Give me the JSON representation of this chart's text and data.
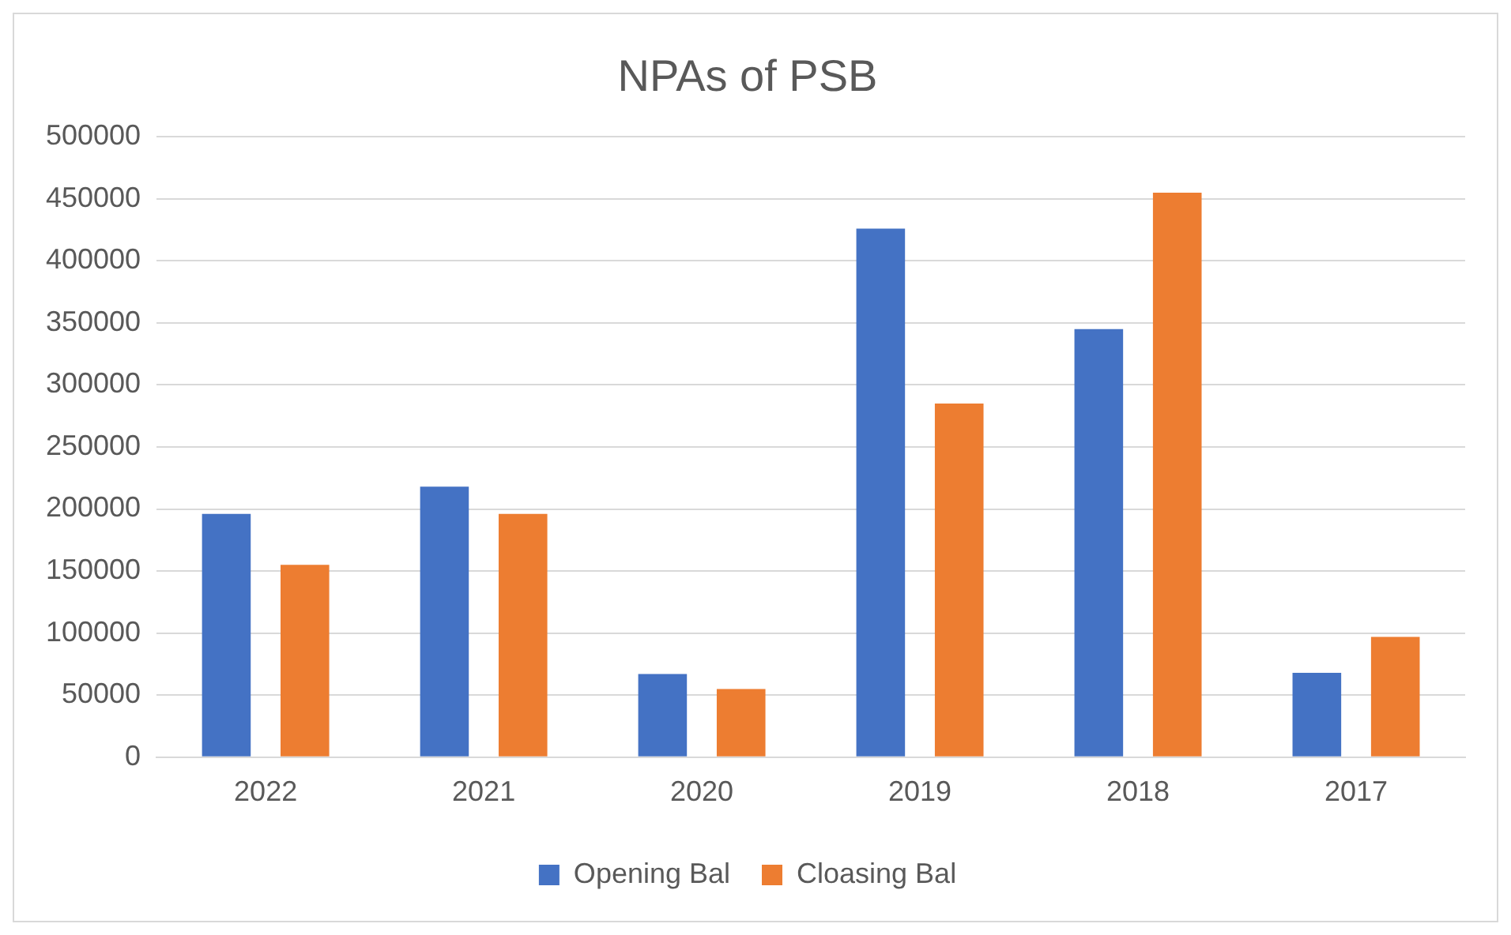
{
  "chart_data": {
    "type": "bar",
    "title": "NPAs of PSB",
    "categories": [
      "2022",
      "2021",
      "2020",
      "2019",
      "2018",
      "2017"
    ],
    "series": [
      {
        "name": "Opening Bal",
        "color": "#4472c4",
        "values": [
          196000,
          218000,
          67000,
          426000,
          345000,
          68000
        ]
      },
      {
        "name": "Cloasing Bal",
        "color": "#ed7d31",
        "values": [
          155000,
          196000,
          55000,
          285000,
          455000,
          97000
        ]
      }
    ],
    "ylim": [
      0,
      500000
    ],
    "yticks": [
      0,
      50000,
      100000,
      150000,
      200000,
      250000,
      300000,
      350000,
      400000,
      450000,
      500000
    ],
    "grid": "y",
    "legend": "bottom"
  }
}
